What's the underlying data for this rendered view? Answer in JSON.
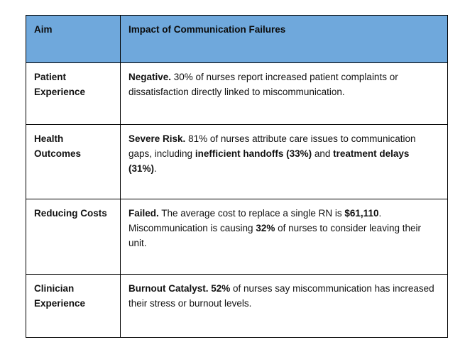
{
  "page": {
    "background_color": "#ffffff",
    "text_color": "#111111"
  },
  "table": {
    "header_fill_color": "#6fa8dc",
    "border_color": "#000000",
    "headers": [
      "Aim",
      "Impact of Communication Failures"
    ],
    "rows": [
      {
        "aim": "Patient Experience",
        "impact": [
          {
            "text": "Negative.",
            "bold": true
          },
          {
            "text": " 30% of nurses report increased patient complaints or dissatisfaction directly linked to miscommunication.",
            "bold": false
          }
        ]
      },
      {
        "aim": "Health Outcomes",
        "impact": [
          {
            "text": "Severe Risk.",
            "bold": true
          },
          {
            "text": " 81% of nurses attribute care issues to communication gaps, including ",
            "bold": false
          },
          {
            "text": "inefficient handoffs (33%)",
            "bold": true
          },
          {
            "text": " and ",
            "bold": false
          },
          {
            "text": "treatment delays (31%)",
            "bold": true
          },
          {
            "text": ".",
            "bold": false
          }
        ]
      },
      {
        "aim": "Reducing Costs",
        "impact": [
          {
            "text": "Failed.",
            "bold": true
          },
          {
            "text": " The average cost to replace a single RN is ",
            "bold": false
          },
          {
            "text": "$61,110",
            "bold": true
          },
          {
            "text": ". Miscommunication is causing ",
            "bold": false
          },
          {
            "text": "32%",
            "bold": true
          },
          {
            "text": " of nurses to consider leaving their unit.",
            "bold": false
          }
        ]
      },
      {
        "aim": "Clinician Experience",
        "impact": [
          {
            "text": "Burnout Catalyst. 52%",
            "bold": true
          },
          {
            "text": " of nurses say miscommunication has increased their stress or burnout levels.",
            "bold": false
          }
        ]
      }
    ]
  }
}
